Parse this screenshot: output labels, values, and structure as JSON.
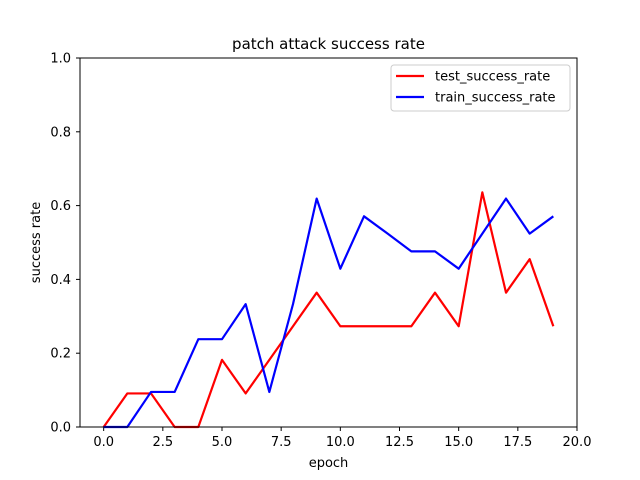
{
  "chart_data": {
    "type": "line",
    "title": "patch attack success rate",
    "xlabel": "epoch",
    "ylabel": "success rate",
    "xlim": [
      -1,
      20
    ],
    "ylim": [
      0,
      1.0
    ],
    "xticks": [
      0.0,
      2.5,
      5.0,
      7.5,
      10.0,
      12.5,
      15.0,
      17.5,
      20.0
    ],
    "xtick_labels": [
      "0.0",
      "2.5",
      "5.0",
      "7.5",
      "10.0",
      "12.5",
      "15.0",
      "17.5",
      "20.0"
    ],
    "yticks": [
      0.0,
      0.2,
      0.4,
      0.6,
      0.8,
      1.0
    ],
    "ytick_labels": [
      "0.0",
      "0.2",
      "0.4",
      "0.6",
      "0.8",
      "1.0"
    ],
    "grid": false,
    "legend_position": "top-right",
    "x": [
      0,
      1,
      2,
      3,
      4,
      5,
      6,
      7,
      8,
      9,
      10,
      11,
      12,
      13,
      14,
      15,
      16,
      17,
      18,
      19
    ],
    "series": [
      {
        "name": "test_success_rate",
        "color": "#ff0000",
        "values": [
          0.0,
          0.091,
          0.091,
          0.0,
          0.0,
          0.182,
          0.091,
          0.182,
          0.273,
          0.364,
          0.273,
          0.273,
          0.273,
          0.273,
          0.364,
          0.273,
          0.636,
          0.364,
          0.455,
          0.273
        ]
      },
      {
        "name": "train_success_rate",
        "color": "#0000ff",
        "values": [
          0.0,
          0.0,
          0.095,
          0.095,
          0.238,
          0.238,
          0.333,
          0.095,
          0.333,
          0.619,
          0.429,
          0.571,
          0.524,
          0.476,
          0.476,
          0.429,
          0.524,
          0.619,
          0.524,
          0.571
        ]
      }
    ]
  }
}
